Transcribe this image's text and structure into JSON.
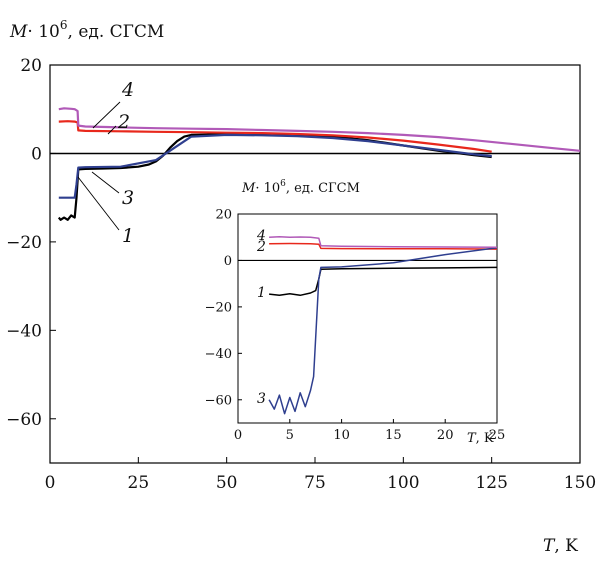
{
  "chart_data": [
    {
      "type": "line",
      "ylabel_var": "M",
      "ylabel_rest": "· 10",
      "ylabel_exp": "6",
      "ylabel_units": ", ед. СГСМ",
      "xlabel_var": "T",
      "xlabel_units": ", K",
      "xlim": [
        0,
        150
      ],
      "ylim": [
        -70,
        20
      ],
      "xticks": [
        0,
        25,
        50,
        75,
        100,
        125,
        150
      ],
      "yticks": [
        20,
        0,
        -20,
        -40,
        -60
      ],
      "ytick_labels": [
        "20",
        "0",
        "−20",
        "−40",
        "−60"
      ],
      "zero_line": true,
      "grid": false,
      "series": [
        {
          "name": "1",
          "color": "#000000",
          "x": [
            2.5,
            3,
            4,
            5,
            6,
            7,
            7.5,
            8,
            10,
            15,
            20,
            25,
            28,
            30,
            32,
            34,
            36,
            38,
            40,
            50,
            60,
            70,
            80,
            90,
            100,
            110,
            120,
            125
          ],
          "y": [
            -14.5,
            -15,
            -14.5,
            -15,
            -14,
            -14.5,
            -10,
            -3.6,
            -3.5,
            -3.4,
            -3.3,
            -3.0,
            -2.5,
            -1.8,
            -0.5,
            1.3,
            2.8,
            3.8,
            4.2,
            4.3,
            4.3,
            4.1,
            3.8,
            3.0,
            1.8,
            0.6,
            -0.4,
            -0.8
          ]
        },
        {
          "name": "2",
          "color": "#e8281c",
          "x": [
            2.5,
            5,
            7,
            7.8,
            8,
            10,
            20,
            30,
            40,
            50,
            60,
            70,
            80,
            90,
            100,
            110,
            120,
            125
          ],
          "y": [
            7.2,
            7.3,
            7.2,
            7.0,
            5.2,
            5.1,
            5.0,
            4.9,
            4.8,
            4.7,
            4.6,
            4.4,
            4.1,
            3.6,
            2.9,
            2.0,
            1.0,
            0.4
          ]
        },
        {
          "name": "3",
          "color": "#2f3f8f",
          "x": [
            2.5,
            5,
            7,
            7.5,
            8,
            10,
            20,
            30,
            40,
            50,
            60,
            70,
            80,
            90,
            100,
            110,
            120,
            125
          ],
          "y": [
            -10,
            -10,
            -10,
            -7,
            -3.2,
            -3.1,
            -3.0,
            -1.5,
            3.8,
            4.2,
            4.1,
            3.9,
            3.5,
            2.8,
            1.8,
            0.8,
            -0.2,
            -0.6
          ]
        },
        {
          "name": "4",
          "color": "#b15ab8",
          "x": [
            2.5,
            4,
            6,
            7,
            7.8,
            8,
            10,
            20,
            30,
            40,
            50,
            60,
            70,
            80,
            90,
            100,
            110,
            120,
            130,
            140,
            150
          ],
          "y": [
            10,
            10.2,
            10.1,
            10,
            9.6,
            6.3,
            6.1,
            5.9,
            5.7,
            5.6,
            5.5,
            5.3,
            5.1,
            4.9,
            4.6,
            4.2,
            3.7,
            3.0,
            2.2,
            1.4,
            0.6
          ]
        }
      ],
      "pointer_labels": [
        "4",
        "2",
        "3",
        "1"
      ]
    },
    {
      "type": "line",
      "inset": true,
      "ylabel_var": "M",
      "ylabel_rest": "· 10",
      "ylabel_exp": "6",
      "ylabel_units": ", ед. СГСМ",
      "xlabel_var": "T",
      "xlabel_units": ", K",
      "xlim": [
        0,
        25
      ],
      "ylim": [
        -70,
        20
      ],
      "xticks": [
        0,
        5,
        10,
        15,
        20,
        25
      ],
      "yticks": [
        20,
        0,
        -20,
        -40,
        -60
      ],
      "ytick_labels": [
        "20",
        "0",
        "−20",
        "−40",
        "−60"
      ],
      "zero_line": true,
      "grid": false,
      "series": [
        {
          "name": "1",
          "color": "#000000",
          "x": [
            3,
            4,
            5,
            6,
            7,
            7.5,
            7.8,
            8,
            10,
            15,
            20,
            25
          ],
          "y": [
            -14.5,
            -15,
            -14.3,
            -15,
            -14,
            -13,
            -8,
            -3.8,
            -3.6,
            -3.4,
            -3.2,
            -3.0
          ]
        },
        {
          "name": "2",
          "color": "#e8281c",
          "x": [
            3,
            5,
            7,
            7.8,
            8,
            10,
            15,
            20,
            25
          ],
          "y": [
            7.2,
            7.3,
            7.2,
            7.0,
            5.2,
            5.1,
            5.0,
            5.0,
            4.9
          ]
        },
        {
          "name": "3",
          "color": "#2f3f8f",
          "x": [
            3,
            3.5,
            4,
            4.5,
            5,
            5.5,
            6,
            6.5,
            7,
            7.3,
            7.6,
            7.8,
            8,
            10,
            15,
            20,
            25
          ],
          "y": [
            -60,
            -64,
            -58,
            -66,
            -59,
            -65,
            -57,
            -63,
            -56,
            -50,
            -25,
            -8,
            -3,
            -2.8,
            -1,
            2.5,
            5.5
          ]
        },
        {
          "name": "4",
          "color": "#b15ab8",
          "x": [
            3,
            4,
            5,
            6,
            7,
            7.8,
            8,
            10,
            15,
            20,
            25
          ],
          "y": [
            10,
            10.2,
            10,
            10.1,
            10,
            9.6,
            6.3,
            6.1,
            5.9,
            5.8,
            5.7
          ]
        }
      ],
      "pointer_labels": [
        "4",
        "2",
        "1",
        "3"
      ]
    }
  ]
}
